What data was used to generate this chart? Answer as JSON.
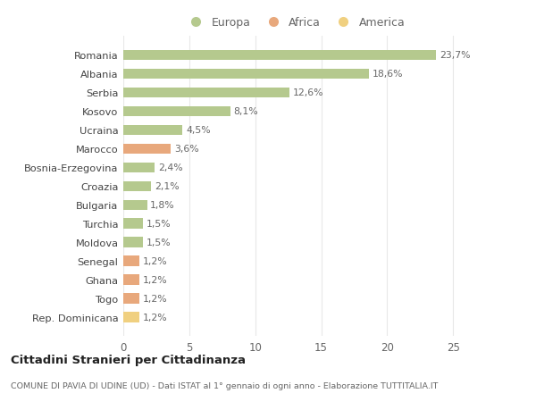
{
  "countries": [
    "Romania",
    "Albania",
    "Serbia",
    "Kosovo",
    "Ucraina",
    "Marocco",
    "Bosnia-Erzegovina",
    "Croazia",
    "Bulgaria",
    "Turchia",
    "Moldova",
    "Senegal",
    "Ghana",
    "Togo",
    "Rep. Dominicana"
  ],
  "values": [
    23.7,
    18.6,
    12.6,
    8.1,
    4.5,
    3.6,
    2.4,
    2.1,
    1.8,
    1.5,
    1.5,
    1.2,
    1.2,
    1.2,
    1.2
  ],
  "labels": [
    "23,7%",
    "18,6%",
    "12,6%",
    "8,1%",
    "4,5%",
    "3,6%",
    "2,4%",
    "2,1%",
    "1,8%",
    "1,5%",
    "1,5%",
    "1,2%",
    "1,2%",
    "1,2%",
    "1,2%"
  ],
  "continents": [
    "Europa",
    "Europa",
    "Europa",
    "Europa",
    "Europa",
    "Africa",
    "Europa",
    "Europa",
    "Europa",
    "Europa",
    "Europa",
    "Africa",
    "Africa",
    "Africa",
    "America"
  ],
  "color_europa": "#b5c98e",
  "color_africa": "#e8a87c",
  "color_america": "#f0d080",
  "background_color": "#ffffff",
  "grid_color": "#e8e8e8",
  "title": "Cittadini Stranieri per Cittadinanza",
  "subtitle": "COMUNE DI PAVIA DI UDINE (UD) - Dati ISTAT al 1° gennaio di ogni anno - Elaborazione TUTTITALIA.IT",
  "xlim": [
    0,
    26
  ],
  "xticks": [
    0,
    5,
    10,
    15,
    20,
    25
  ],
  "legend_labels": [
    "Europa",
    "Africa",
    "America"
  ],
  "legend_colors": [
    "#b5c98e",
    "#e8a87c",
    "#f0d080"
  ]
}
